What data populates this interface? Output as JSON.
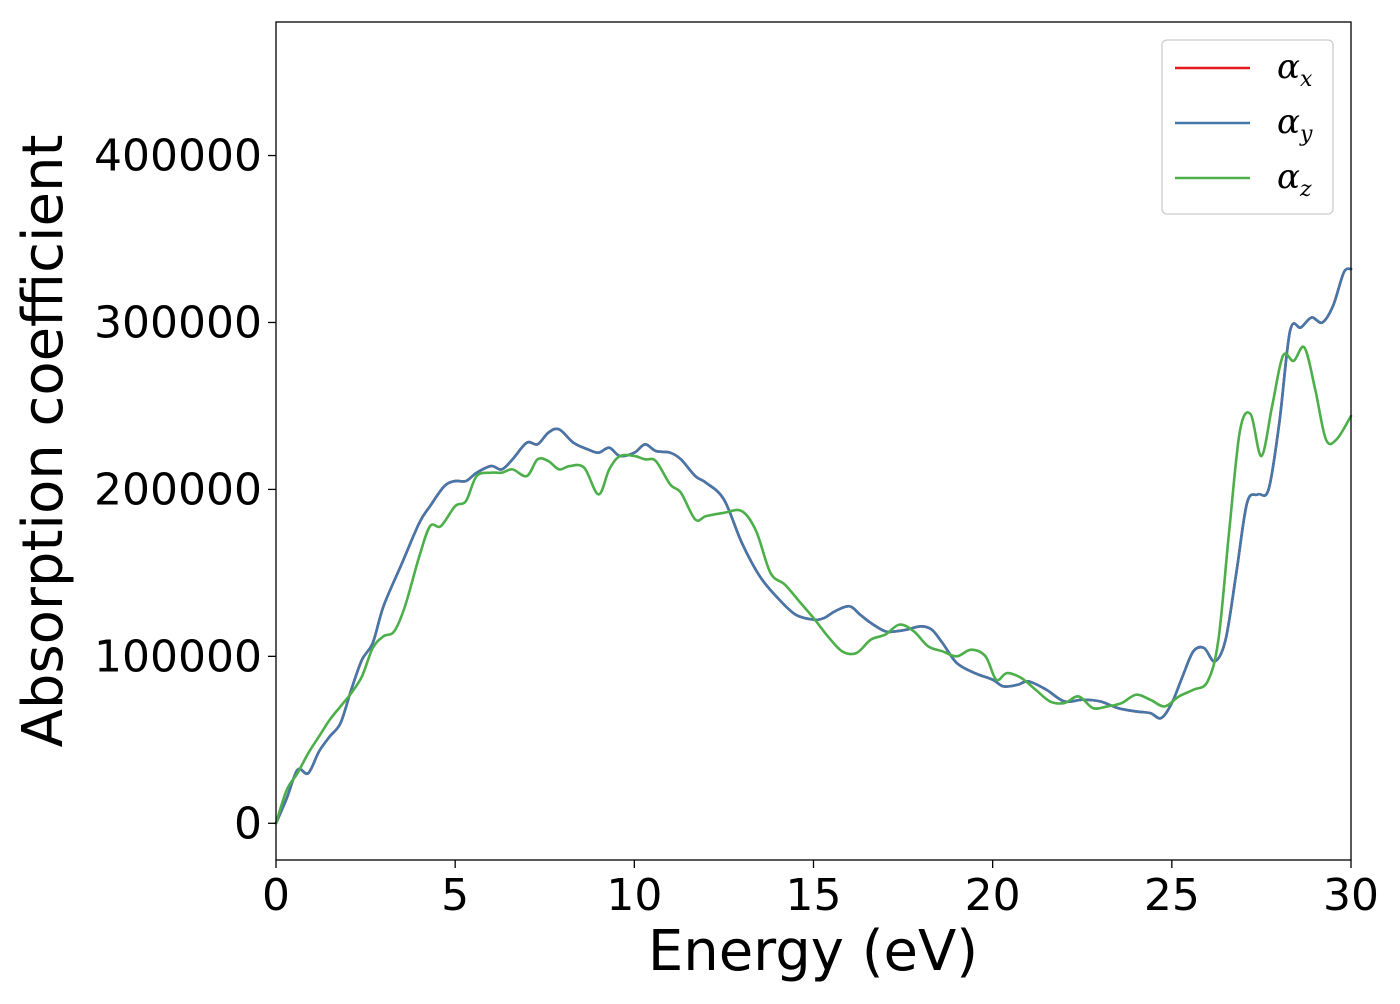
{
  "chart_data": {
    "type": "line",
    "title": "",
    "xlabel": "Energy (eV)",
    "ylabel": "Absorption coefficient",
    "xlim": [
      0,
      30
    ],
    "ylim": [
      -22000,
      480000
    ],
    "xticks": [
      0,
      5,
      10,
      15,
      20,
      25,
      30
    ],
    "xtick_labels": [
      "0",
      "5",
      "10",
      "15",
      "20",
      "25",
      "30"
    ],
    "yticks": [
      0,
      100000,
      200000,
      300000,
      400000
    ],
    "ytick_labels": [
      "0",
      "100000",
      "200000",
      "300000",
      "400000"
    ],
    "grid": false,
    "legend_position": "top-right",
    "series": [
      {
        "name": "α",
        "sub": "x",
        "color": "#e41a1c",
        "x": [
          0,
          0.3,
          0.6,
          0.9,
          1.2,
          1.5,
          1.8,
          2.1,
          2.4,
          2.7,
          3.0,
          3.5,
          4.0,
          4.3,
          4.7,
          5.0,
          5.3,
          5.6,
          6.0,
          6.3,
          6.6,
          7.0,
          7.3,
          7.6,
          7.9,
          8.3,
          8.7,
          9.0,
          9.3,
          9.6,
          10.0,
          10.3,
          10.6,
          11.0,
          11.3,
          11.7,
          12.0,
          12.5,
          13.0,
          13.5,
          14.0,
          14.5,
          15.0,
          15.3,
          15.6,
          16.0,
          16.3,
          16.6,
          17.0,
          17.3,
          17.6,
          18.0,
          18.3,
          18.6,
          19.0,
          19.5,
          20.0,
          20.3,
          20.7,
          21.0,
          21.5,
          22.0,
          22.5,
          23.0,
          23.5,
          24.0,
          24.4,
          24.7,
          25.0,
          25.3,
          25.6,
          25.9,
          26.2,
          26.5,
          26.8,
          27.1,
          27.4,
          27.7,
          28.0,
          28.3,
          28.6,
          28.9,
          29.2,
          29.5,
          29.8,
          30.0
        ],
        "values": [
          0,
          15000,
          32000,
          30000,
          43000,
          52000,
          60000,
          80000,
          98000,
          108000,
          130000,
          155000,
          180000,
          190000,
          202000,
          205000,
          205000,
          210000,
          214000,
          212000,
          218000,
          228000,
          227000,
          234000,
          236000,
          228000,
          224000,
          222000,
          225000,
          220000,
          222000,
          227000,
          223000,
          222000,
          218000,
          208000,
          204000,
          194000,
          168000,
          148000,
          135000,
          125000,
          122000,
          123000,
          127000,
          130000,
          125000,
          120000,
          115000,
          115000,
          116000,
          118000,
          116000,
          108000,
          96000,
          90000,
          86000,
          82000,
          83000,
          85000,
          80000,
          73000,
          74000,
          73000,
          69000,
          67000,
          66000,
          63000,
          72000,
          88000,
          103000,
          105000,
          97000,
          110000,
          150000,
          192000,
          197000,
          200000,
          240000,
          295000,
          297000,
          303000,
          300000,
          310000,
          330000,
          332000
        ]
      },
      {
        "name": "α",
        "sub": "y",
        "color": "#4477aa",
        "x": [
          0,
          0.3,
          0.6,
          0.9,
          1.2,
          1.5,
          1.8,
          2.1,
          2.4,
          2.7,
          3.0,
          3.5,
          4.0,
          4.3,
          4.7,
          5.0,
          5.3,
          5.6,
          6.0,
          6.3,
          6.6,
          7.0,
          7.3,
          7.6,
          7.9,
          8.3,
          8.7,
          9.0,
          9.3,
          9.6,
          10.0,
          10.3,
          10.6,
          11.0,
          11.3,
          11.7,
          12.0,
          12.5,
          13.0,
          13.5,
          14.0,
          14.5,
          15.0,
          15.3,
          15.6,
          16.0,
          16.3,
          16.6,
          17.0,
          17.3,
          17.6,
          18.0,
          18.3,
          18.6,
          19.0,
          19.5,
          20.0,
          20.3,
          20.7,
          21.0,
          21.5,
          22.0,
          22.5,
          23.0,
          23.5,
          24.0,
          24.4,
          24.7,
          25.0,
          25.3,
          25.6,
          25.9,
          26.2,
          26.5,
          26.8,
          27.1,
          27.4,
          27.7,
          28.0,
          28.3,
          28.6,
          28.9,
          29.2,
          29.5,
          29.8,
          30.0
        ],
        "values": [
          0,
          15000,
          32000,
          30000,
          43000,
          52000,
          60000,
          80000,
          98000,
          108000,
          130000,
          155000,
          180000,
          190000,
          202000,
          205000,
          205000,
          210000,
          214000,
          212000,
          218000,
          228000,
          227000,
          234000,
          236000,
          228000,
          224000,
          222000,
          225000,
          220000,
          222000,
          227000,
          223000,
          222000,
          218000,
          208000,
          204000,
          194000,
          168000,
          148000,
          135000,
          125000,
          122000,
          123000,
          127000,
          130000,
          125000,
          120000,
          115000,
          115000,
          116000,
          118000,
          116000,
          108000,
          96000,
          90000,
          86000,
          82000,
          83000,
          85000,
          80000,
          73000,
          74000,
          73000,
          69000,
          67000,
          66000,
          63000,
          72000,
          88000,
          103000,
          105000,
          97000,
          110000,
          150000,
          192000,
          197000,
          200000,
          240000,
          295000,
          297000,
          303000,
          300000,
          310000,
          330000,
          332000
        ]
      },
      {
        "name": "α",
        "sub": "z",
        "color": "#4daf4a",
        "x": [
          0,
          0.3,
          0.6,
          0.9,
          1.2,
          1.5,
          1.8,
          2.1,
          2.4,
          2.7,
          3.0,
          3.3,
          3.6,
          4.0,
          4.3,
          4.6,
          5.0,
          5.3,
          5.6,
          6.0,
          6.3,
          6.6,
          7.0,
          7.3,
          7.6,
          7.9,
          8.2,
          8.6,
          9.0,
          9.3,
          9.6,
          10.0,
          10.3,
          10.6,
          11.0,
          11.3,
          11.7,
          12.0,
          12.5,
          13.0,
          13.4,
          13.8,
          14.2,
          14.6,
          15.0,
          15.4,
          15.8,
          16.2,
          16.6,
          17.0,
          17.4,
          17.8,
          18.2,
          18.6,
          19.0,
          19.4,
          19.8,
          20.1,
          20.4,
          20.8,
          21.2,
          21.6,
          22.0,
          22.4,
          22.8,
          23.2,
          23.6,
          24.0,
          24.4,
          24.8,
          25.2,
          25.6,
          26.0,
          26.3,
          26.6,
          26.9,
          27.2,
          27.5,
          27.8,
          28.1,
          28.4,
          28.7,
          29.0,
          29.3,
          29.6,
          30.0
        ],
        "values": [
          0,
          20000,
          30000,
          42000,
          52000,
          62000,
          70000,
          78000,
          88000,
          105000,
          112000,
          115000,
          130000,
          160000,
          178000,
          178000,
          190000,
          193000,
          208000,
          210000,
          210000,
          212000,
          208000,
          218000,
          217000,
          212000,
          214000,
          213000,
          197000,
          212000,
          220000,
          220000,
          218000,
          217000,
          203000,
          198000,
          182000,
          184000,
          186000,
          187000,
          175000,
          150000,
          143000,
          133000,
          123000,
          112000,
          103000,
          102000,
          110000,
          113000,
          119000,
          115000,
          106000,
          103000,
          100000,
          104000,
          100000,
          86000,
          90000,
          87000,
          80000,
          73000,
          72000,
          76000,
          69000,
          70000,
          72000,
          77000,
          74000,
          70000,
          76000,
          80000,
          85000,
          110000,
          175000,
          235000,
          245000,
          220000,
          250000,
          280000,
          277000,
          285000,
          260000,
          230000,
          230000,
          244000
        ]
      }
    ]
  }
}
